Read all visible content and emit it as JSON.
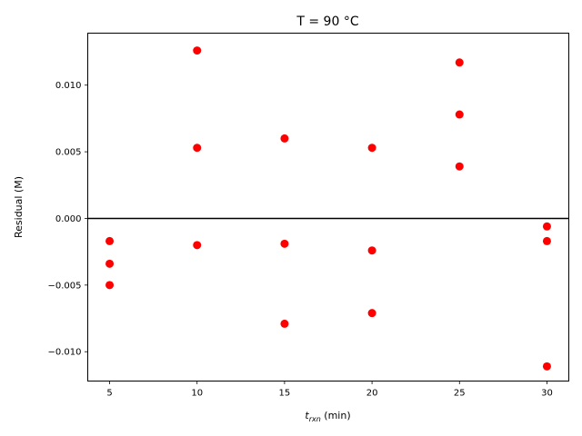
{
  "chart_data": {
    "type": "scatter",
    "title": "T = 90 °C",
    "xlabel_main": "t",
    "xlabel_sub": "rxn",
    "xlabel_unit": " (min)",
    "ylabel": "Residual (M)",
    "xlim": [
      3.75,
      31.25
    ],
    "ylim": [
      -0.0122,
      0.0139
    ],
    "xticks": [
      5,
      10,
      15,
      20,
      25,
      30
    ],
    "xtick_labels": [
      "5",
      "10",
      "15",
      "20",
      "25",
      "30"
    ],
    "yticks": [
      -0.01,
      -0.005,
      0.0,
      0.005,
      0.01
    ],
    "ytick_labels": [
      "−0.010",
      "−0.005",
      "0.000",
      "0.005",
      "0.010"
    ],
    "reference_line_y": 0,
    "grid": false,
    "marker_color": "#ff0000",
    "line_color": "#000000",
    "series": [
      {
        "points": [
          {
            "x": 5,
            "y": -0.0017
          },
          {
            "x": 5,
            "y": -0.0034
          },
          {
            "x": 5,
            "y": -0.005
          },
          {
            "x": 10,
            "y": 0.0126
          },
          {
            "x": 10,
            "y": 0.0053
          },
          {
            "x": 10,
            "y": -0.002
          },
          {
            "x": 15,
            "y": 0.006
          },
          {
            "x": 15,
            "y": -0.0019
          },
          {
            "x": 15,
            "y": -0.0079
          },
          {
            "x": 20,
            "y": 0.0053
          },
          {
            "x": 20,
            "y": -0.0024
          },
          {
            "x": 20,
            "y": -0.0071
          },
          {
            "x": 25,
            "y": 0.0117
          },
          {
            "x": 25,
            "y": 0.0078
          },
          {
            "x": 25,
            "y": 0.0039
          },
          {
            "x": 30,
            "y": -0.0006
          },
          {
            "x": 30,
            "y": -0.0017
          },
          {
            "x": 30,
            "y": -0.0111
          }
        ]
      }
    ]
  }
}
